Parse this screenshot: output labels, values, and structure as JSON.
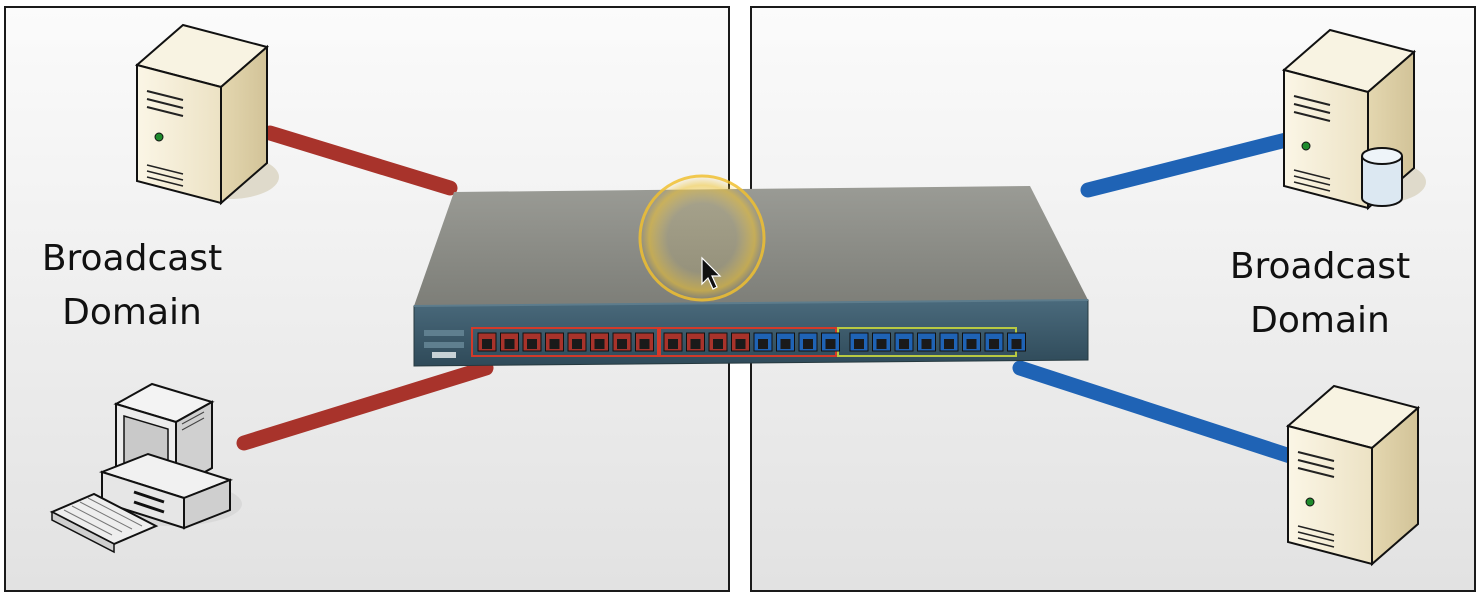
{
  "left_domain": {
    "line1": "Broadcast",
    "line2": "Domain"
  },
  "right_domain": {
    "line1": "Broadcast",
    "line2": "Domain"
  },
  "colors": {
    "left_vlan": "#a8332b",
    "right_vlan": "#1f63b5",
    "switch_body": "#8a8b86",
    "switch_front": "#3e5b6c",
    "highlight": "#f0c030"
  },
  "icons": {
    "top_left": "server-icon",
    "bottom_left": "desktop-computer-icon",
    "top_right": "database-server-icon",
    "bottom_right": "server-icon",
    "center": "network-switch-icon",
    "pointer": "mouse-pointer-icon"
  }
}
